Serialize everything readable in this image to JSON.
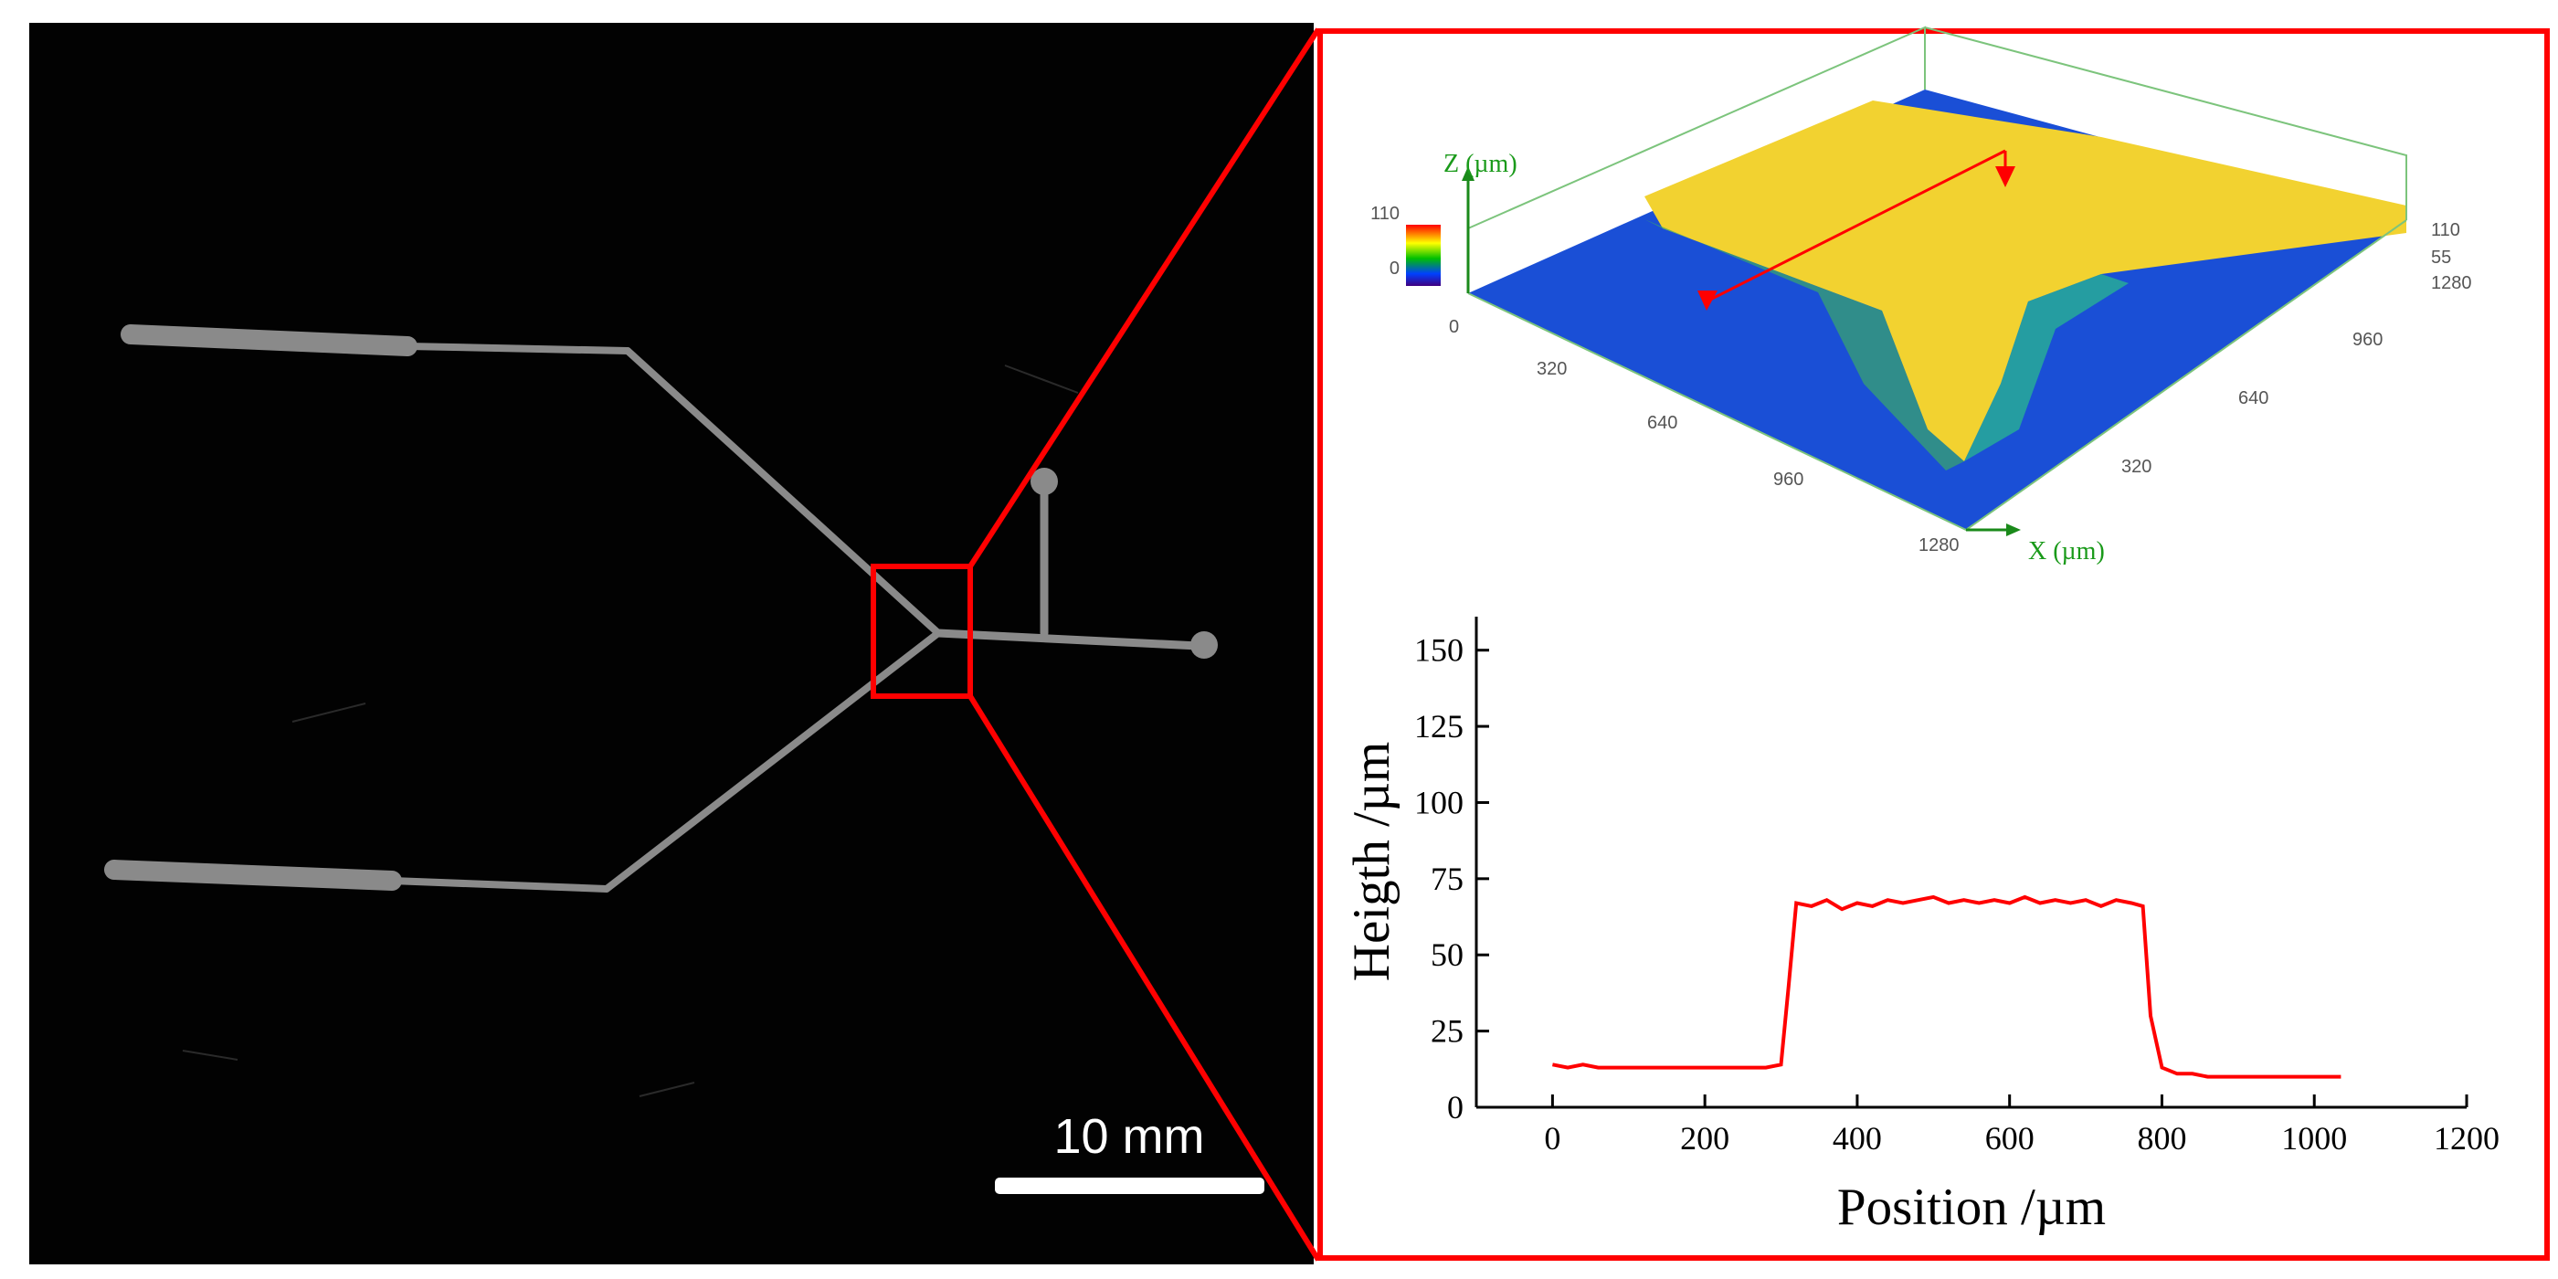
{
  "photo": {
    "scale_bar": "10 mm"
  },
  "surface_plot": {
    "z_axis_label": "Z (µm)",
    "x_axis_label": "X (µm)",
    "colorbar_ticks": [
      110,
      0
    ],
    "z_ticks": [
      110,
      55
    ],
    "left_ticks": [
      0,
      320,
      640,
      960,
      1280
    ],
    "right_ticks": [
      1280,
      960,
      640,
      320
    ]
  },
  "chart_data": {
    "type": "line",
    "xlabel": "Position /µm",
    "ylabel": "Heigth /µm",
    "x": [
      0,
      20,
      40,
      60,
      80,
      100,
      120,
      140,
      160,
      180,
      200,
      220,
      240,
      260,
      280,
      300,
      310,
      320,
      340,
      360,
      380,
      400,
      420,
      440,
      460,
      480,
      500,
      520,
      540,
      560,
      580,
      600,
      620,
      640,
      660,
      680,
      700,
      720,
      740,
      760,
      775,
      785,
      800,
      820,
      840,
      860,
      880,
      900,
      920,
      940,
      960,
      980,
      1000,
      1020,
      1035
    ],
    "values": [
      14,
      13,
      14,
      13,
      13,
      13,
      13,
      13,
      13,
      13,
      13,
      13,
      13,
      13,
      13,
      14,
      40,
      67,
      66,
      68,
      65,
      67,
      66,
      68,
      67,
      68,
      69,
      67,
      68,
      67,
      68,
      67,
      69,
      67,
      68,
      67,
      68,
      66,
      68,
      67,
      66,
      30,
      13,
      11,
      11,
      10,
      10,
      10,
      10,
      10,
      10,
      10,
      10,
      10,
      10
    ],
    "color": "#ff0000",
    "xlim": [
      -100,
      1200
    ],
    "ylim": [
      0,
      161
    ],
    "xticks": [
      0,
      200,
      400,
      600,
      800,
      1000,
      1200
    ],
    "yticks": [
      0,
      25,
      50,
      75,
      100,
      125,
      150
    ]
  }
}
